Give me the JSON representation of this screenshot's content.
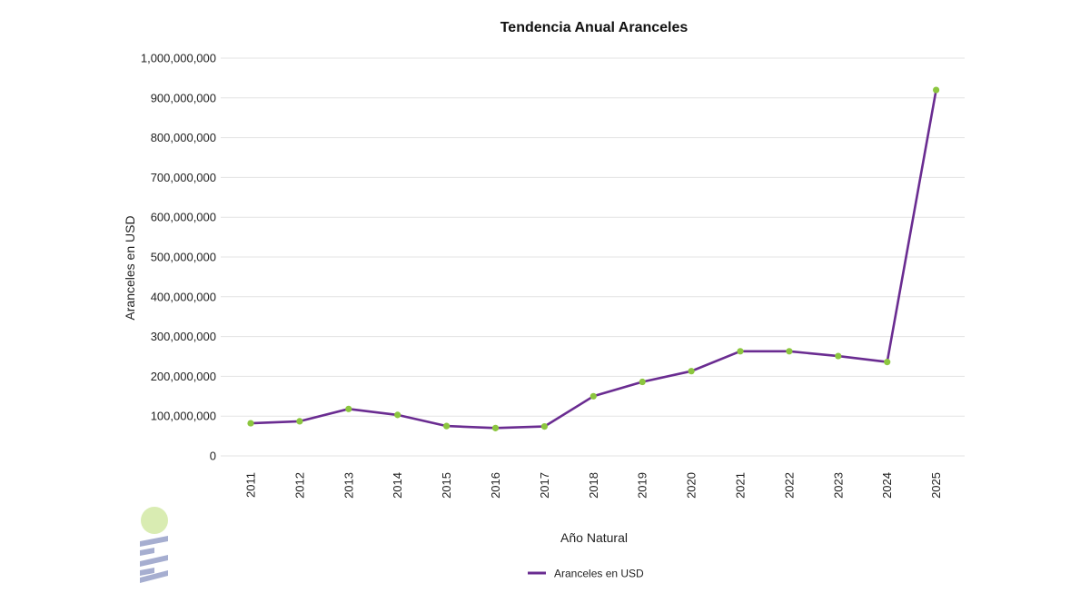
{
  "chart_data": {
    "type": "line",
    "title": "Tendencia Anual Aranceles",
    "xlabel": "Año Natural",
    "ylabel": "Aranceles en USD",
    "ylim": [
      0,
      1000000000
    ],
    "yticks": [
      0,
      100000000,
      200000000,
      300000000,
      400000000,
      500000000,
      600000000,
      700000000,
      800000000,
      900000000,
      1000000000
    ],
    "ytick_labels": [
      "0",
      "100,000,000",
      "200,000,000",
      "300,000,000",
      "400,000,000",
      "500,000,000",
      "600,000,000",
      "700,000,000",
      "800,000,000",
      "900,000,000",
      "1,000,000,000"
    ],
    "categories": [
      "2011",
      "2012",
      "2013",
      "2014",
      "2015",
      "2016",
      "2017",
      "2018",
      "2019",
      "2020",
      "2021",
      "2022",
      "2023",
      "2024",
      "2025"
    ],
    "grid": true,
    "legend_position": "bottom-center",
    "series": [
      {
        "name": "Aranceles en USD",
        "line_color": "#6a2c91",
        "marker_color": "#8cc63f",
        "values": [
          82000000,
          87000000,
          118000000,
          103000000,
          75000000,
          70000000,
          74000000,
          150000000,
          186000000,
          213000000,
          263000000,
          263000000,
          251000000,
          236000000,
          920000000
        ]
      }
    ]
  },
  "logo": {
    "circle_color": "#d9ecb2",
    "bar_color": "#a6aed0"
  }
}
